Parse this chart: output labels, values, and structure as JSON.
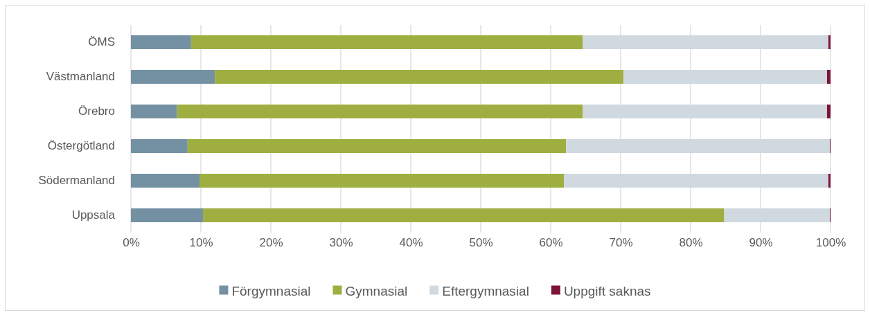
{
  "chart_data": {
    "type": "bar",
    "orientation": "horizontal",
    "stacked": true,
    "categories": [
      "ÖMS",
      "Västmanland",
      "Örebro",
      "Östergötland",
      "Södermanland",
      "Uppsala"
    ],
    "series": [
      {
        "name": "Förgymnasial",
        "color": "#7491a3",
        "values": [
          8.6,
          12.0,
          6.6,
          8.1,
          9.8,
          10.3
        ]
      },
      {
        "name": "Gymnasial",
        "color": "#9fae41",
        "values": [
          56.0,
          58.4,
          58.0,
          54.1,
          52.1,
          74.5
        ]
      },
      {
        "name": "Eftergymnasial",
        "color": "#d0d9e0",
        "values": [
          35.1,
          29.1,
          34.9,
          37.7,
          37.8,
          15.1
        ]
      },
      {
        "name": "Uppgift saknas",
        "color": "#7d1437",
        "values": [
          0.3,
          0.5,
          0.5,
          0.1,
          0.3,
          0.1
        ]
      }
    ],
    "xlim": [
      0,
      100
    ],
    "xticks": [
      {
        "value": 0,
        "label": "0%"
      },
      {
        "value": 10,
        "label": "10%"
      },
      {
        "value": 20,
        "label": "20%"
      },
      {
        "value": 30,
        "label": "30%"
      },
      {
        "value": 40,
        "label": "40%"
      },
      {
        "value": 50,
        "label": "50%"
      },
      {
        "value": 60,
        "label": "60%"
      },
      {
        "value": 70,
        "label": "70%"
      },
      {
        "value": 80,
        "label": "80%"
      },
      {
        "value": 90,
        "label": "90%"
      },
      {
        "value": 100,
        "label": "100%"
      }
    ],
    "grid": "x",
    "legend": "bottom"
  }
}
